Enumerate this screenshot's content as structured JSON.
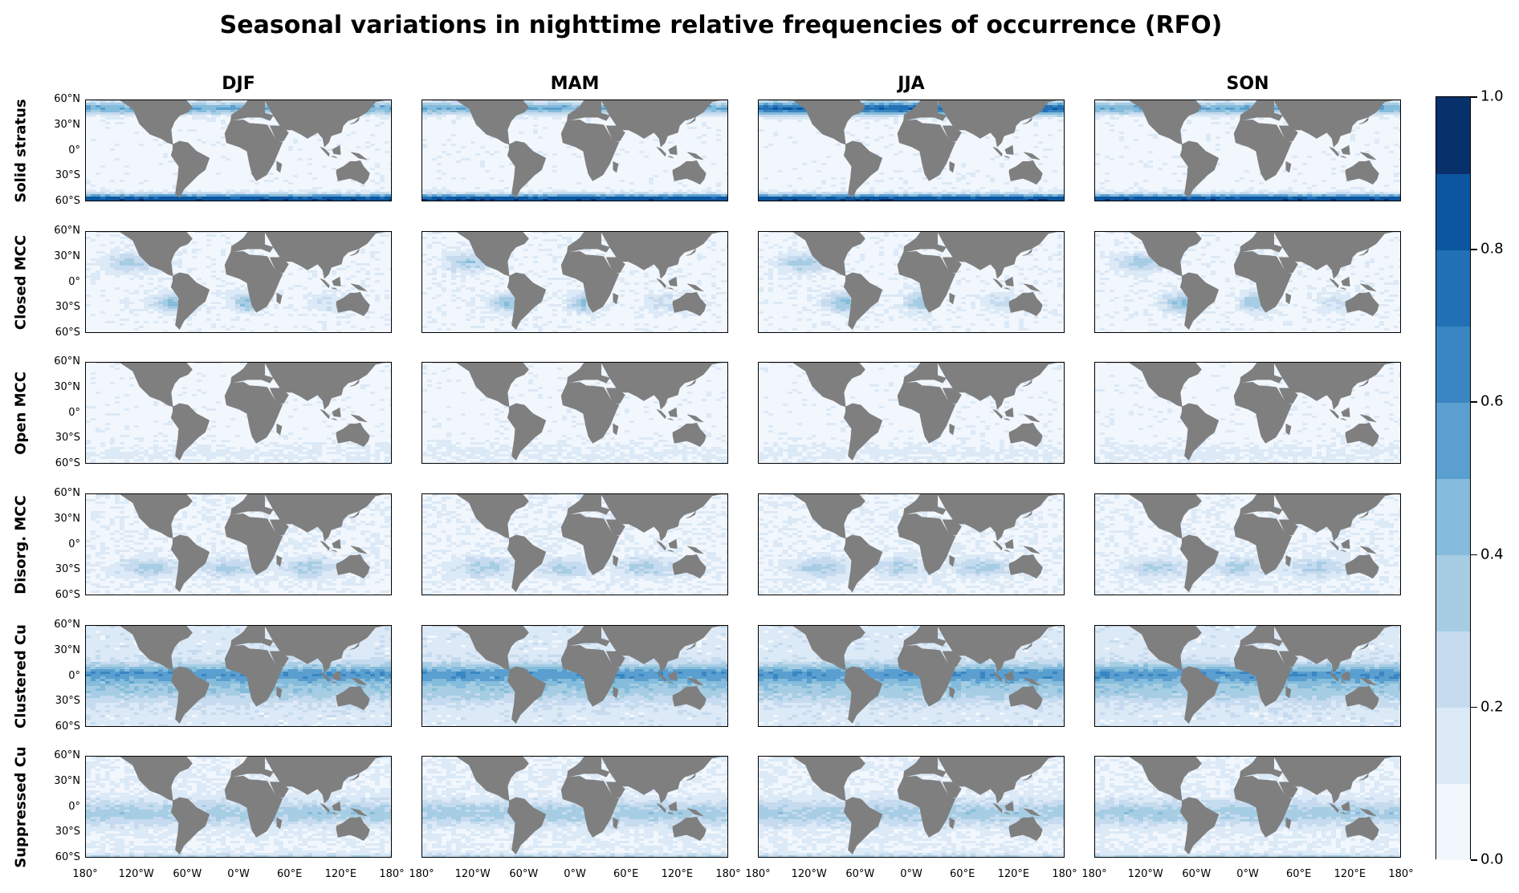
{
  "title": "Seasonal variations in nighttime relative frequencies of occurrence (RFO)",
  "columns": [
    "DJF",
    "MAM",
    "JJA",
    "SON"
  ],
  "rows": [
    "Solid stratus",
    "Closed MCC",
    "Open MCC",
    "Disorg. MCC",
    "Clustered Cu",
    "Suppressed Cu"
  ],
  "y_ticks": [
    "60°N",
    "30°N",
    "0°",
    "30°S",
    "60°S"
  ],
  "x_ticks": [
    "180°",
    "120°W",
    "60°W",
    "0°W",
    "60°E",
    "120°E",
    "180°"
  ],
  "colorbar": {
    "ticks": [
      "0.0",
      "0.2",
      "0.4",
      "0.6",
      "0.8",
      "1.0"
    ],
    "levels": [
      "#f1f7fd",
      "#dce9f6",
      "#c6dbef",
      "#a6cde3",
      "#85bcdb",
      "#5a9fd0",
      "#3a86c2",
      "#2270b5",
      "#0c56a0",
      "#08306b"
    ],
    "range": [
      0,
      1
    ]
  },
  "land_color": "#7f7f7f",
  "chart_data": {
    "type": "heatmap",
    "title": "Seasonal variations in nighttime relative frequencies of occurrence (RFO)",
    "columns": [
      "DJF",
      "MAM",
      "JJA",
      "SON"
    ],
    "rows": [
      "Solid stratus",
      "Closed MCC",
      "Open MCC",
      "Disorg. MCC",
      "Clustered Cu",
      "Suppressed Cu"
    ],
    "x_range": [
      -180,
      180
    ],
    "y_range": [
      -60,
      60
    ],
    "colorbar_range": [
      0,
      1
    ],
    "colorbar_ticks": [
      0.0,
      0.2,
      0.4,
      0.6,
      0.8,
      1.0
    ]
  }
}
